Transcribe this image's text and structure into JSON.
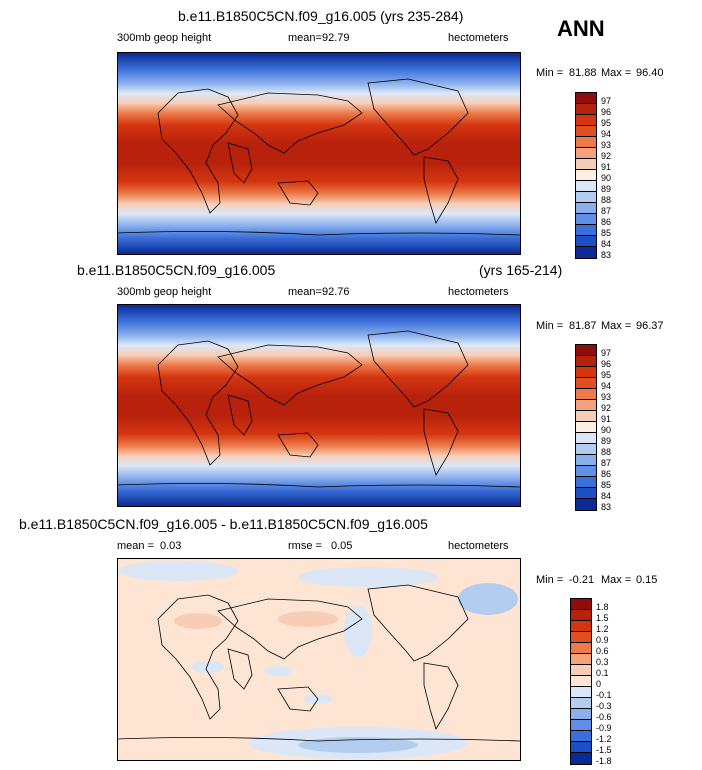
{
  "season": "ANN",
  "panels": [
    {
      "case_title": "b.e11.B1850C5CN.f09_g16.005 (yrs 235-284)",
      "years": "",
      "variable": "300mb geop height",
      "stat_label": "mean=",
      "stat_value": "92.79",
      "stat2_label": "",
      "stat2_value": "",
      "units": "hectometers",
      "min_label": "Min =",
      "min_value": "81.88",
      "max_label": "Max =",
      "max_value": "96.40",
      "legend_levels": [
        "97",
        "96",
        "95",
        "94",
        "93",
        "92",
        "91",
        "90",
        "89",
        "88",
        "87",
        "86",
        "85",
        "84",
        "83"
      ],
      "legend_colors": [
        "#8f0d0a",
        "#b8220d",
        "#d43510",
        "#e24f1f",
        "#ec7a4a",
        "#f3a27b",
        "#f8cdb5",
        "#fdf0e6",
        "#dbe7f7",
        "#b3cdf1",
        "#89afec",
        "#5f8fe6",
        "#3b6fd9",
        "#1f4fc4",
        "#0a2a95"
      ]
    },
    {
      "case_title": "b.e11.B1850C5CN.f09_g16.005",
      "years": "(yrs 165-214)",
      "variable": "300mb geop height",
      "stat_label": "mean=",
      "stat_value": "92.76",
      "stat2_label": "",
      "stat2_value": "",
      "units": "hectometers",
      "min_label": "Min =",
      "min_value": "81.87",
      "max_label": "Max =",
      "max_value": "96.37",
      "legend_levels": [
        "97",
        "96",
        "95",
        "94",
        "93",
        "92",
        "91",
        "90",
        "89",
        "88",
        "87",
        "86",
        "85",
        "84",
        "83"
      ],
      "legend_colors": [
        "#8f0d0a",
        "#b8220d",
        "#d43510",
        "#e24f1f",
        "#ec7a4a",
        "#f3a27b",
        "#f8cdb5",
        "#fdf0e6",
        "#dbe7f7",
        "#b3cdf1",
        "#89afec",
        "#5f8fe6",
        "#3b6fd9",
        "#1f4fc4",
        "#0a2a95"
      ]
    },
    {
      "case_title": "b.e11.B1850C5CN.f09_g16.005 - b.e11.B1850C5CN.f09_g16.005",
      "years": "",
      "variable": "",
      "stat_label": "mean =",
      "stat_value": "0.03",
      "stat2_label": "rmse =",
      "stat2_value": "0.05",
      "units": "hectometers",
      "min_label": "Min =",
      "min_value": "-0.21",
      "max_label": "Max =",
      "max_value": "0.15",
      "legend_levels": [
        "1.8",
        "1.5",
        "1.2",
        "0.9",
        "0.6",
        "0.3",
        "0.1",
        "0",
        "-0.1",
        "-0.3",
        "-0.6",
        "-0.9",
        "-1.2",
        "-1.5",
        "-1.8"
      ],
      "legend_colors": [
        "#8f0d0a",
        "#b8220d",
        "#d43510",
        "#e24f1f",
        "#ec7a4a",
        "#f3a27b",
        "#f8cdb5",
        "#fde4d3",
        "#dbe7f7",
        "#b3cdf1",
        "#89afec",
        "#5f8fe6",
        "#3b6fd9",
        "#1f4fc4",
        "#0a2a95"
      ]
    }
  ]
}
